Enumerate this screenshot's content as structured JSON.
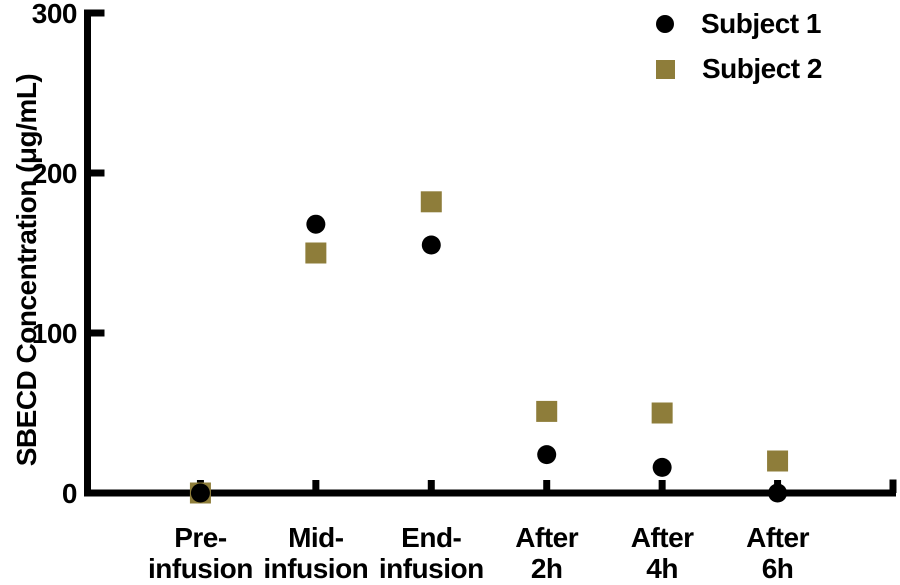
{
  "figure": {
    "background": "#ffffff",
    "axis_color": "#000000"
  },
  "legend": {
    "items": [
      {
        "label": "Subject 1",
        "marker": "circle",
        "color": "#000000"
      },
      {
        "label": "Subject 2",
        "marker": "square",
        "color": "#8E7D3A"
      }
    ]
  },
  "chart_data": {
    "type": "scatter",
    "ylabel": "SBECD Concentration (μg/mL)",
    "xlabel": "",
    "ylim": [
      0,
      300
    ],
    "yticks": [
      0,
      100,
      200,
      300
    ],
    "grid": false,
    "legend_position": "top-right",
    "categories": [
      "Pre-infusion",
      "Mid-infusion",
      "End-infusion",
      "After 2h",
      "After 4h",
      "After 6h"
    ],
    "category_lines": [
      [
        "Pre-",
        "infusion"
      ],
      [
        "Mid-",
        "infusion"
      ],
      [
        "End-",
        "infusion"
      ],
      [
        "After",
        "2h"
      ],
      [
        "After",
        "4h"
      ],
      [
        "After",
        "6h"
      ]
    ],
    "series": [
      {
        "name": "Subject 1",
        "marker": "circle",
        "color": "#000000",
        "values": [
          0,
          168,
          155,
          24,
          16,
          0
        ]
      },
      {
        "name": "Subject 2",
        "marker": "square",
        "color": "#8E7D3A",
        "values": [
          0,
          150,
          182,
          51,
          50,
          20
        ]
      }
    ]
  }
}
